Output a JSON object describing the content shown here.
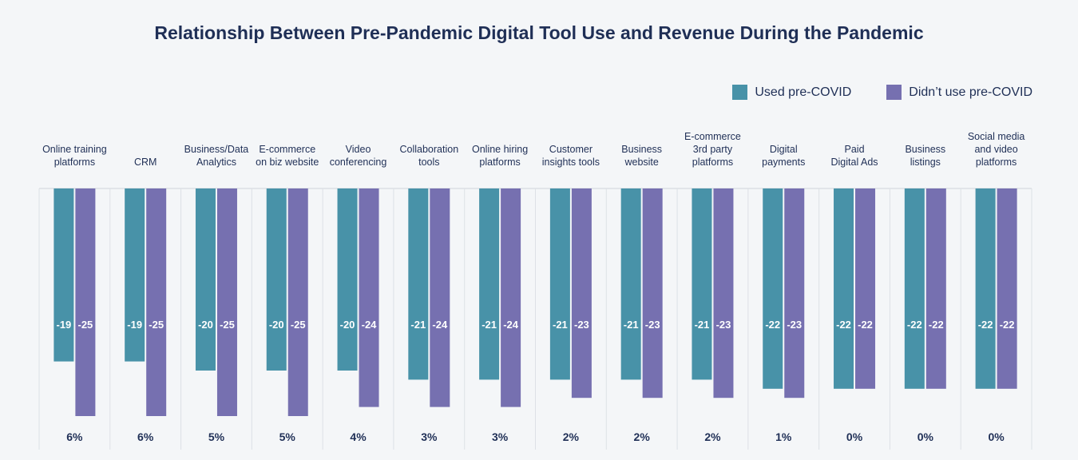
{
  "chart_data": {
    "type": "bar",
    "title": "Relationship Between Pre-Pandemic Digital Tool Use and Revenue During the Pandemic",
    "legend_position": "top-right",
    "categories": [
      [
        "Online training",
        "platforms"
      ],
      [
        "CRM"
      ],
      [
        "Business/Data",
        "Analytics"
      ],
      [
        "E-commerce",
        "on biz website"
      ],
      [
        "Video",
        "conferencing"
      ],
      [
        "Collaboration",
        "tools"
      ],
      [
        "Online hiring",
        "platforms"
      ],
      [
        "Customer",
        "insights tools"
      ],
      [
        "Business",
        "website"
      ],
      [
        "E-commerce",
        "3rd party",
        "platforms"
      ],
      [
        "Digital",
        "payments"
      ],
      [
        "Paid",
        "Digital Ads"
      ],
      [
        "Business",
        "listings"
      ],
      [
        "Social media",
        "and video",
        "platforms"
      ]
    ],
    "series": [
      {
        "name": "Used pre-COVID",
        "color": "#4892a8",
        "values": [
          -19,
          -19,
          -20,
          -20,
          -20,
          -21,
          -21,
          -21,
          -21,
          -21,
          -22,
          -22,
          -22,
          -22
        ]
      },
      {
        "name": "Didn’t use pre-COVID",
        "color": "#7670b0",
        "values": [
          -25,
          -25,
          -25,
          -25,
          -24,
          -24,
          -24,
          -23,
          -23,
          -23,
          -23,
          -22,
          -22,
          -22
        ]
      }
    ],
    "differences": [
      "6%",
      "6%",
      "5%",
      "5%",
      "4%",
      "3%",
      "3%",
      "2%",
      "2%",
      "2%",
      "1%",
      "0%",
      "0%",
      "0%"
    ]
  }
}
